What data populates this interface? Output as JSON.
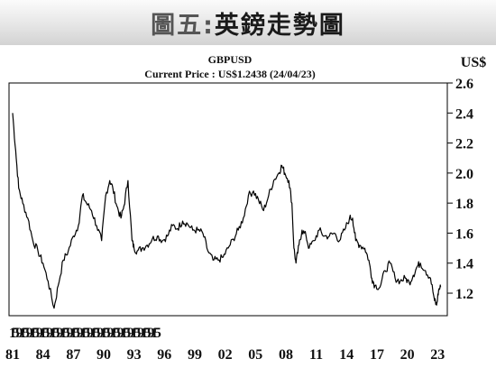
{
  "banner": {
    "prefix": "圖五:",
    "title": "英鎊走勢圖"
  },
  "colors": {
    "line": "#000000",
    "banner_top": "#fbfbfb",
    "banner_bottom": "#d3d3d3"
  },
  "chart_data": {
    "type": "line",
    "title": "GBPUSD",
    "subtitle": "Current Price : US$1.2438 (24/04/23)",
    "ylabel": "US$",
    "xlabel": "",
    "ylim": [
      1.05,
      2.6
    ],
    "xlim": [
      1981.0,
      2023.6
    ],
    "yticks": [
      1.2,
      1.4,
      1.6,
      1.8,
      2.0,
      2.2,
      2.4,
      2.6
    ],
    "ytick_labels": [
      "1.2",
      "1.4",
      "1.6",
      "1.8",
      "2.0",
      "2.2",
      "2.4",
      "2.6"
    ],
    "xticks_month": [
      "1",
      "5",
      "9",
      "1",
      "5",
      "9",
      "1",
      "5",
      "9",
      "1",
      "5",
      "9",
      "1",
      "5",
      "9",
      "1",
      "5",
      "9",
      "1",
      "5",
      "9",
      "1",
      "5",
      "9",
      "1",
      "5",
      "9",
      "1",
      "5",
      "9",
      "1",
      "5",
      "9",
      "1",
      "5",
      "9",
      "1",
      "5",
      "9",
      "1",
      "5",
      "9",
      "1",
      "5"
    ],
    "xticks_year": [
      {
        "x": 1981,
        "label": "81"
      },
      {
        "x": 1984,
        "label": "84"
      },
      {
        "x": 1987,
        "label": "87"
      },
      {
        "x": 1990,
        "label": "90"
      },
      {
        "x": 1993,
        "label": "93"
      },
      {
        "x": 1996,
        "label": "96"
      },
      {
        "x": 1999,
        "label": "99"
      },
      {
        "x": 2002,
        "label": "02"
      },
      {
        "x": 2005,
        "label": "05"
      },
      {
        "x": 2008,
        "label": "08"
      },
      {
        "x": 2011,
        "label": "11"
      },
      {
        "x": 2014,
        "label": "14"
      },
      {
        "x": 2017,
        "label": "17"
      },
      {
        "x": 2020,
        "label": "20"
      },
      {
        "x": 2023,
        "label": "23"
      }
    ],
    "grid": false,
    "series": [
      {
        "x": [
          1981.0,
          1981.3,
          1981.6,
          1982.0,
          1982.5,
          1983.0,
          1983.5,
          1984.0,
          1984.5,
          1985.1,
          1985.5,
          1986.0,
          1986.5,
          1987.0,
          1987.5,
          1987.9,
          1988.3,
          1988.8,
          1989.3,
          1989.8,
          1990.2,
          1990.6,
          1990.9,
          1991.3,
          1991.7,
          1992.0,
          1992.4,
          1992.8,
          1993.0,
          1993.3,
          1993.8,
          1994.3,
          1994.8,
          1995.3,
          1995.8,
          1996.3,
          1996.8,
          1997.3,
          1997.8,
          1998.3,
          1998.8,
          1999.3,
          1999.8,
          2000.3,
          2000.8,
          2001.3,
          2001.8,
          2002.3,
          2002.8,
          2003.3,
          2003.8,
          2004.3,
          2004.8,
          2005.3,
          2005.8,
          2006.3,
          2006.8,
          2007.3,
          2007.6,
          2007.9,
          2008.3,
          2008.6,
          2008.8,
          2009.0,
          2009.3,
          2009.6,
          2010.0,
          2010.3,
          2010.8,
          2011.3,
          2011.8,
          2012.3,
          2012.8,
          2013.3,
          2013.8,
          2014.3,
          2014.6,
          2014.9,
          2015.3,
          2015.8,
          2016.2,
          2016.5,
          2016.8,
          2017.3,
          2017.8,
          2018.3,
          2018.8,
          2019.3,
          2019.8,
          2020.2,
          2020.6,
          2021.0,
          2021.3,
          2021.8,
          2022.3,
          2022.7,
          2022.9,
          2023.1,
          2023.3
        ],
        "y": [
          2.4,
          2.15,
          1.9,
          1.8,
          1.7,
          1.55,
          1.48,
          1.4,
          1.28,
          1.1,
          1.25,
          1.42,
          1.48,
          1.58,
          1.65,
          1.85,
          1.8,
          1.75,
          1.65,
          1.55,
          1.85,
          1.95,
          1.9,
          1.78,
          1.7,
          1.78,
          1.95,
          1.55,
          1.5,
          1.48,
          1.5,
          1.52,
          1.56,
          1.58,
          1.55,
          1.58,
          1.65,
          1.63,
          1.68,
          1.66,
          1.62,
          1.62,
          1.6,
          1.48,
          1.42,
          1.42,
          1.44,
          1.5,
          1.56,
          1.62,
          1.7,
          1.85,
          1.88,
          1.82,
          1.75,
          1.85,
          1.95,
          2.0,
          2.05,
          2.0,
          1.95,
          1.8,
          1.5,
          1.4,
          1.52,
          1.62,
          1.58,
          1.5,
          1.55,
          1.62,
          1.58,
          1.58,
          1.6,
          1.55,
          1.62,
          1.7,
          1.7,
          1.55,
          1.52,
          1.5,
          1.42,
          1.3,
          1.25,
          1.24,
          1.35,
          1.4,
          1.3,
          1.28,
          1.3,
          1.27,
          1.32,
          1.38,
          1.4,
          1.35,
          1.3,
          1.15,
          1.12,
          1.22,
          1.24
        ]
      }
    ]
  }
}
